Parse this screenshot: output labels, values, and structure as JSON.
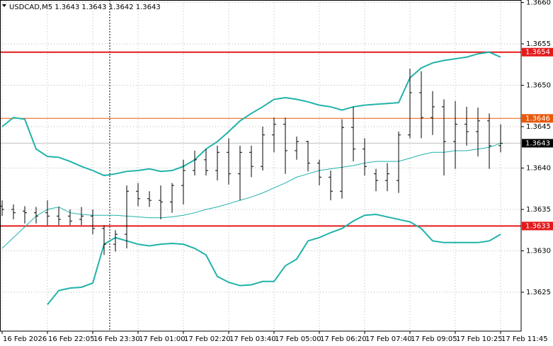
{
  "chart_data": {
    "type": "ohlc",
    "title": "USDCAD,M5 1.3643 1.3643 1.3642 1.3643",
    "categories": [
      "16 Feb 2026",
      null,
      null,
      null,
      "16 Feb 22:05",
      null,
      null,
      null,
      "16 Feb 23:30",
      null,
      null,
      null,
      "17 Feb 01:00",
      null,
      null,
      null,
      "17 Feb 02:20",
      null,
      null,
      null,
      "17 Feb 03:40",
      null,
      null,
      null,
      "17 Feb 05:00",
      null,
      null,
      null,
      "17 Feb 06:20",
      null,
      null,
      null,
      "17 Feb 07:40",
      null,
      null,
      null,
      "17 Feb 09:05",
      null,
      null,
      null,
      "17 Feb 10:25",
      null,
      null,
      null,
      "17 Feb 11:45"
    ],
    "open": [
      1.36354,
      1.3635,
      1.36348,
      1.36346,
      1.36346,
      1.36342,
      1.36342,
      1.36338,
      1.36342,
      1.36327,
      1.36308,
      1.3632,
      1.36372,
      1.36363,
      1.36361,
      1.36359,
      1.36379,
      1.36397,
      1.3641,
      1.36397,
      1.36419,
      1.36393,
      1.36419,
      1.36402,
      1.3644,
      1.36453,
      1.36421,
      1.36432,
      1.36406,
      1.36389,
      1.36372,
      1.36449,
      1.36423,
      1.36393,
      1.36385,
      1.36385,
      1.3644,
      1.36491,
      1.36461,
      1.36474,
      1.36432,
      1.36453,
      1.36444,
      1.36457,
      1.36427
    ],
    "high": [
      1.36361,
      1.36356,
      1.36354,
      1.36353,
      1.36361,
      1.36353,
      1.3635,
      1.36353,
      1.3635,
      1.36331,
      1.36325,
      1.36379,
      1.36382,
      1.36372,
      1.36379,
      1.36382,
      1.3641,
      1.36421,
      1.36423,
      1.36427,
      1.36436,
      1.36427,
      1.36427,
      1.3645,
      1.36461,
      1.36461,
      1.36438,
      1.36433,
      1.3641,
      1.36397,
      1.36459,
      1.36474,
      1.36436,
      1.36399,
      1.36406,
      1.36444,
      1.3652,
      1.36517,
      1.36493,
      1.36483,
      1.36481,
      1.36474,
      1.36473,
      1.36466,
      1.36453
    ],
    "low": [
      1.36342,
      1.36338,
      1.36333,
      1.36333,
      1.36331,
      1.36331,
      1.36331,
      1.36331,
      1.3632,
      1.36295,
      1.36299,
      1.36303,
      1.36354,
      1.36353,
      1.36338,
      1.36346,
      1.36356,
      1.36391,
      1.36391,
      1.36385,
      1.3638,
      1.36361,
      1.36389,
      1.36397,
      1.36419,
      1.36393,
      1.3641,
      1.36396,
      1.36379,
      1.36361,
      1.36363,
      1.36408,
      1.36391,
      1.36372,
      1.36372,
      1.3637,
      1.36436,
      1.36436,
      1.3644,
      1.36391,
      1.36399,
      1.36427,
      1.36414,
      1.36399,
      1.36419
    ],
    "close": [
      1.3635,
      1.36346,
      1.36346,
      1.36342,
      1.36342,
      1.36338,
      1.36336,
      1.36342,
      1.36327,
      1.36308,
      1.3632,
      1.36372,
      1.36363,
      1.36361,
      1.36359,
      1.36379,
      1.36397,
      1.3641,
      1.36397,
      1.36419,
      1.36393,
      1.36419,
      1.36402,
      1.3644,
      1.36453,
      1.36421,
      1.36432,
      1.36406,
      1.36389,
      1.36372,
      1.36449,
      1.36423,
      1.36402,
      1.36385,
      1.36393,
      1.3644,
      1.36491,
      1.36461,
      1.36474,
      1.36432,
      1.36453,
      1.36444,
      1.36457,
      1.36427,
      1.3643
    ],
    "color": "#000000",
    "bands": {
      "color": "#20b2aa",
      "upper": [
        1.3645,
        1.36461,
        1.36459,
        1.36423,
        1.36414,
        1.36413,
        1.36408,
        1.36402,
        1.36397,
        1.36391,
        1.36393,
        1.36396,
        1.36397,
        1.36399,
        1.36396,
        1.36397,
        1.36402,
        1.3641,
        1.36423,
        1.36432,
        1.36444,
        1.36457,
        1.36466,
        1.36474,
        1.36483,
        1.36485,
        1.36483,
        1.3648,
        1.36476,
        1.36474,
        1.3647,
        1.36474,
        1.36476,
        1.36477,
        1.36478,
        1.36479,
        1.36509,
        1.36521,
        1.36527,
        1.3653,
        1.36532,
        1.36534,
        1.36538,
        1.3654,
        1.36534
      ],
      "middle": [
        1.36303,
        1.36316,
        1.36329,
        1.36342,
        1.3635,
        1.36353,
        1.36346,
        1.36344,
        1.36343,
        1.36343,
        1.36343,
        1.36342,
        1.36341,
        1.3634,
        1.3634,
        1.36341,
        1.36343,
        1.36346,
        1.3635,
        1.36353,
        1.36357,
        1.36361,
        1.36365,
        1.3637,
        1.36376,
        1.36382,
        1.36389,
        1.36393,
        1.36397,
        1.36399,
        1.36401,
        1.36403,
        1.36406,
        1.36408,
        1.36408,
        1.36408,
        1.36412,
        1.36416,
        1.36419,
        1.36419,
        1.36421,
        1.36421,
        1.36423,
        1.36425,
        1.3643
      ],
      "lower": [
        null,
        null,
        null,
        null,
        1.36235,
        1.36252,
        1.36255,
        1.36256,
        1.36261,
        1.36308,
        1.36316,
        1.36312,
        1.36308,
        1.36306,
        1.36308,
        1.36309,
        1.36308,
        1.36303,
        1.36295,
        1.36269,
        1.36262,
        1.36258,
        1.36259,
        1.36263,
        1.36263,
        1.36282,
        1.3629,
        1.36312,
        1.36316,
        1.36322,
        1.36327,
        1.36336,
        1.36343,
        1.36344,
        1.36341,
        1.36338,
        1.36335,
        1.36327,
        1.36312,
        1.3631,
        1.3631,
        1.3631,
        1.3631,
        1.36312,
        1.3632
      ]
    },
    "levels": [
      {
        "value": 1.3654,
        "color": "#e31a1c"
      },
      {
        "value": 1.3646,
        "color": "#e8590c"
      },
      {
        "value": 1.3633,
        "color": "#e31a1c"
      }
    ],
    "last_price": {
      "value": 1.3643,
      "color": "#c0c0c0"
    },
    "ylim": [
      1.36203,
      1.36603
    ],
    "yticks": [
      {
        "value": 1.366,
        "label": "1.3660"
      },
      1.3655,
      {
        "value": 1.365,
        "label": "1.3650"
      },
      1.3645,
      {
        "value": 1.364,
        "label": "1.3640"
      },
      1.3635,
      {
        "value": 1.363,
        "label": "1.3630"
      },
      1.3625
    ],
    "grid": true
  }
}
